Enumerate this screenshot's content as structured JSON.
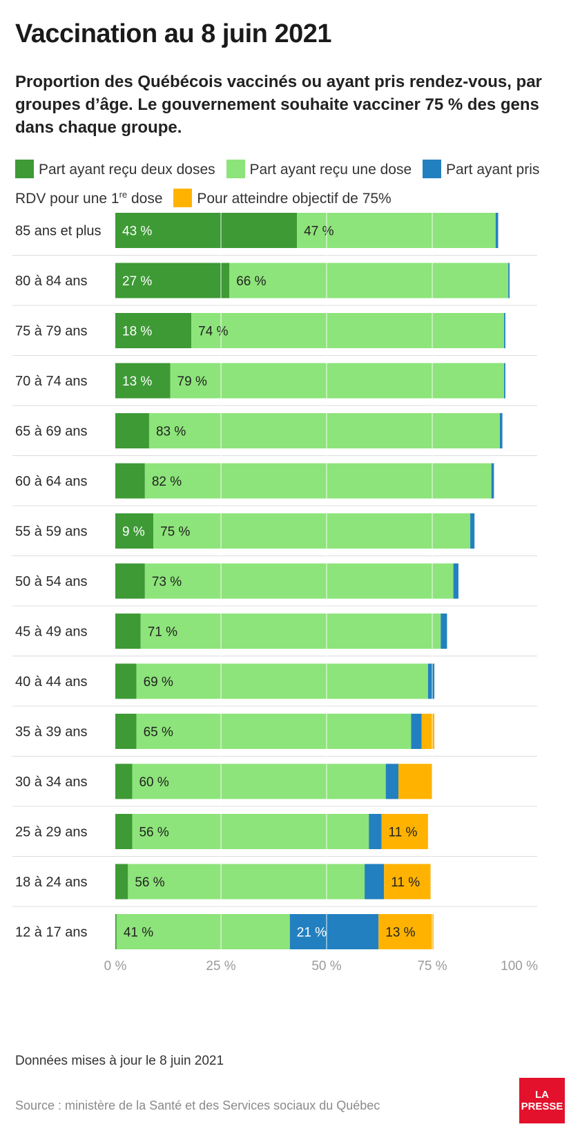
{
  "title": "Vaccination au 8 juin 2021",
  "subtitle": "Proportion des Québécois vaccinés ou ayant pris rendez-vous, par groupes d’âge. Le gouvernement souhaite vacciner 75 % des gens dans chaque groupe.",
  "legend": {
    "two_doses": "Part ayant reçu deux doses",
    "one_dose": "Part ayant reçu une dose",
    "rdv_part1": "Part ayant pris RDV pour une 1",
    "rdv_sup": "re",
    "rdv_part2": " dose",
    "objective": "Pour atteindre objectif de 75%"
  },
  "colors": {
    "two_doses": "#3d9a35",
    "one_dose": "#8de47a",
    "rdv": "#2380c0",
    "objective": "#ffb300"
  },
  "chart_data": {
    "type": "bar",
    "orientation": "horizontal",
    "stacked": true,
    "xlim": [
      0,
      100
    ],
    "ticks": [
      "0 %",
      "25 %",
      "50 %",
      "75 %",
      "100 %"
    ],
    "categories": [
      "85 ans et plus",
      "80 à 84 ans",
      "75 à 79 ans",
      "70 à 74 ans",
      "65 à 69 ans",
      "60 à 64 ans",
      "55 à 59 ans",
      "50 à 54 ans",
      "45 à 49 ans",
      "40 à 44 ans",
      "35 à 39 ans",
      "30 à 34 ans",
      "25 à 29 ans",
      "18 à 24 ans",
      "12 à 17 ans"
    ],
    "series": [
      {
        "name": "Part ayant reçu deux doses",
        "key": "two_doses",
        "values": [
          43,
          27,
          18,
          13,
          8,
          7,
          9,
          7,
          6,
          5,
          5,
          4,
          4,
          3,
          0.3
        ],
        "labels": [
          "43 %",
          "27 %",
          "18 %",
          "13 %",
          "",
          "",
          "9 %",
          "",
          "",
          "",
          "",
          "",
          "",
          "",
          ""
        ]
      },
      {
        "name": "Part ayant reçu une dose",
        "key": "one_dose",
        "values": [
          47,
          66,
          74,
          79,
          83,
          82,
          75,
          73,
          71,
          69,
          65,
          60,
          56,
          56,
          41
        ],
        "labels": [
          "47 %",
          "66 %",
          "74 %",
          "79 %",
          "83 %",
          "82 %",
          "75 %",
          "73 %",
          "71 %",
          "69 %",
          "65 %",
          "60 %",
          "56 %",
          "56 %",
          "41 %"
        ]
      },
      {
        "name": "Part ayant pris RDV pour une 1re dose",
        "key": "rdv",
        "values": [
          0.6,
          0.3,
          0.3,
          0.3,
          0.6,
          0.6,
          1,
          1.2,
          1.5,
          1.5,
          2.5,
          3,
          3,
          4.6,
          21
        ],
        "labels": [
          "",
          "",
          "",
          "",
          "",
          "",
          "",
          "",
          "",
          "",
          "",
          "",
          "",
          "",
          "21 %"
        ]
      },
      {
        "name": "Pour atteindre objectif de 75%",
        "key": "objective",
        "values": [
          0,
          0,
          0,
          0,
          0,
          0,
          0,
          0,
          0,
          0,
          3,
          8,
          11,
          11,
          13
        ],
        "labels": [
          "",
          "",
          "",
          "",
          "",
          "",
          "",
          "",
          "",
          "",
          "",
          "",
          "11 %",
          "11 %",
          "13 %"
        ]
      }
    ]
  },
  "note": "Données mises à jour le 8 juin 2021",
  "source": "Source : ministère de la Santé et des Services sociaux du Québec",
  "logo": {
    "line1": "LA",
    "line2": "PRESSE"
  }
}
